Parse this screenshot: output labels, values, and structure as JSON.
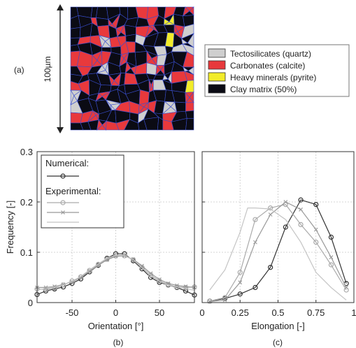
{
  "panel_a": {
    "label": "(a)",
    "scale_label": "100µm",
    "legend": [
      {
        "label": "Tectosilicates (quartz)",
        "color": "#cfcfcf"
      },
      {
        "label": "Carbonates (calcite)",
        "color": "#e8393c"
      },
      {
        "label": "Heavy minerals (pyrite)",
        "color": "#f2ec2a"
      },
      {
        "label": "Clay matrix (50%)",
        "color": "#0b0b14"
      }
    ],
    "grain_boundary_color": "#3a4fd0"
  },
  "chart_data": [
    {
      "type": "line",
      "panel": "(b)",
      "xlabel": "Orientation [°]",
      "ylabel": "Frequency [-]",
      "xlim": [
        -90,
        90
      ],
      "ylim": [
        0,
        0.3
      ],
      "xticks": [
        -50,
        0,
        50
      ],
      "xtick_labels": [
        "-50",
        "0",
        "50"
      ],
      "yticks": [
        0,
        0.1,
        0.2,
        0.3
      ],
      "ytick_labels": [
        "0",
        "0.1",
        "0.2",
        "0.3"
      ],
      "grid": true,
      "legend": {
        "placement": "top-left",
        "headings": [
          "Numerical:",
          "Experimental:"
        ]
      },
      "series": [
        {
          "group": "Numerical:",
          "color": "#333333",
          "marker": "circle",
          "x": [
            -90,
            -80,
            -70,
            -60,
            -50,
            -40,
            -30,
            -20,
            -10,
            0,
            10,
            20,
            30,
            40,
            50,
            60,
            70,
            80,
            90
          ],
          "y": [
            0.016,
            0.023,
            0.027,
            0.031,
            0.038,
            0.047,
            0.061,
            0.074,
            0.088,
            0.097,
            0.097,
            0.083,
            0.067,
            0.05,
            0.04,
            0.035,
            0.03,
            0.023,
            0.015
          ]
        },
        {
          "group": "Experimental:",
          "color": "#aaaaaa",
          "marker": "circle",
          "x": [
            -90,
            -80,
            -70,
            -60,
            -50,
            -40,
            -30,
            -20,
            -10,
            0,
            10,
            20,
            30,
            40,
            50,
            60,
            70,
            80,
            90
          ],
          "y": [
            0.027,
            0.026,
            0.029,
            0.035,
            0.043,
            0.051,
            0.064,
            0.076,
            0.086,
            0.093,
            0.093,
            0.085,
            0.07,
            0.055,
            0.043,
            0.036,
            0.031,
            0.03,
            0.031
          ]
        },
        {
          "group": "Experimental:",
          "color": "#999999",
          "marker": "cross",
          "x": [
            -90,
            -80,
            -70,
            -60,
            -50,
            -40,
            -30,
            -20,
            -10,
            0,
            10,
            20,
            30,
            40,
            50,
            60,
            70,
            80,
            90
          ],
          "y": [
            0.03,
            0.03,
            0.032,
            0.036,
            0.041,
            0.05,
            0.062,
            0.074,
            0.085,
            0.092,
            0.093,
            0.086,
            0.073,
            0.058,
            0.046,
            0.038,
            0.034,
            0.032,
            0.03
          ]
        },
        {
          "group": "Experimental:",
          "color": "#c4c4c4",
          "marker": "none",
          "x": [
            -90,
            -80,
            -70,
            -60,
            -50,
            -40,
            -30,
            -20,
            -10,
            0,
            10,
            20,
            30,
            40,
            50,
            60,
            70,
            80,
            90
          ],
          "y": [
            0.025,
            0.028,
            0.031,
            0.035,
            0.042,
            0.052,
            0.065,
            0.077,
            0.088,
            0.094,
            0.094,
            0.085,
            0.069,
            0.054,
            0.042,
            0.035,
            0.031,
            0.028,
            0.024
          ]
        }
      ]
    },
    {
      "type": "line",
      "panel": "(c)",
      "xlabel": "Elongation [-]",
      "ylabel": "",
      "xlim": [
        0,
        1
      ],
      "ylim": [
        0,
        0.3
      ],
      "xticks": [
        0,
        0.25,
        0.5,
        0.75,
        1
      ],
      "xtick_labels": [
        "0",
        "0.25",
        "0.5",
        "0.75",
        "1"
      ],
      "yticks": [
        0,
        0.1,
        0.2,
        0.3
      ],
      "grid": true,
      "series": [
        {
          "group": "Numerical:",
          "color": "#333333",
          "marker": "circle",
          "x": [
            0.05,
            0.15,
            0.25,
            0.35,
            0.45,
            0.55,
            0.65,
            0.75,
            0.85,
            0.95
          ],
          "y": [
            0.003,
            0.008,
            0.017,
            0.03,
            0.07,
            0.15,
            0.204,
            0.195,
            0.13,
            0.038
          ]
        },
        {
          "group": "Experimental:",
          "color": "#aaaaaa",
          "marker": "circle",
          "x": [
            0.05,
            0.15,
            0.25,
            0.35,
            0.45,
            0.55,
            0.65,
            0.75,
            0.85,
            0.95
          ],
          "y": [
            0.003,
            0.01,
            0.06,
            0.165,
            0.188,
            0.195,
            0.155,
            0.12,
            0.075,
            0.025
          ]
        },
        {
          "group": "Experimental:",
          "color": "#999999",
          "marker": "cross",
          "x": [
            0.05,
            0.15,
            0.25,
            0.35,
            0.45,
            0.55,
            0.65,
            0.75,
            0.85,
            0.95
          ],
          "y": [
            0.002,
            0.005,
            0.04,
            0.12,
            0.175,
            0.2,
            0.185,
            0.145,
            0.09,
            0.03
          ]
        },
        {
          "group": "Experimental:",
          "color": "#c4c4c4",
          "marker": "none",
          "x": [
            0.05,
            0.15,
            0.25,
            0.3,
            0.35,
            0.45,
            0.55,
            0.65,
            0.75,
            0.85,
            0.95
          ],
          "y": [
            0.025,
            0.065,
            0.14,
            0.188,
            0.188,
            0.186,
            0.165,
            0.12,
            0.06,
            0.03,
            0.005
          ]
        }
      ]
    }
  ]
}
